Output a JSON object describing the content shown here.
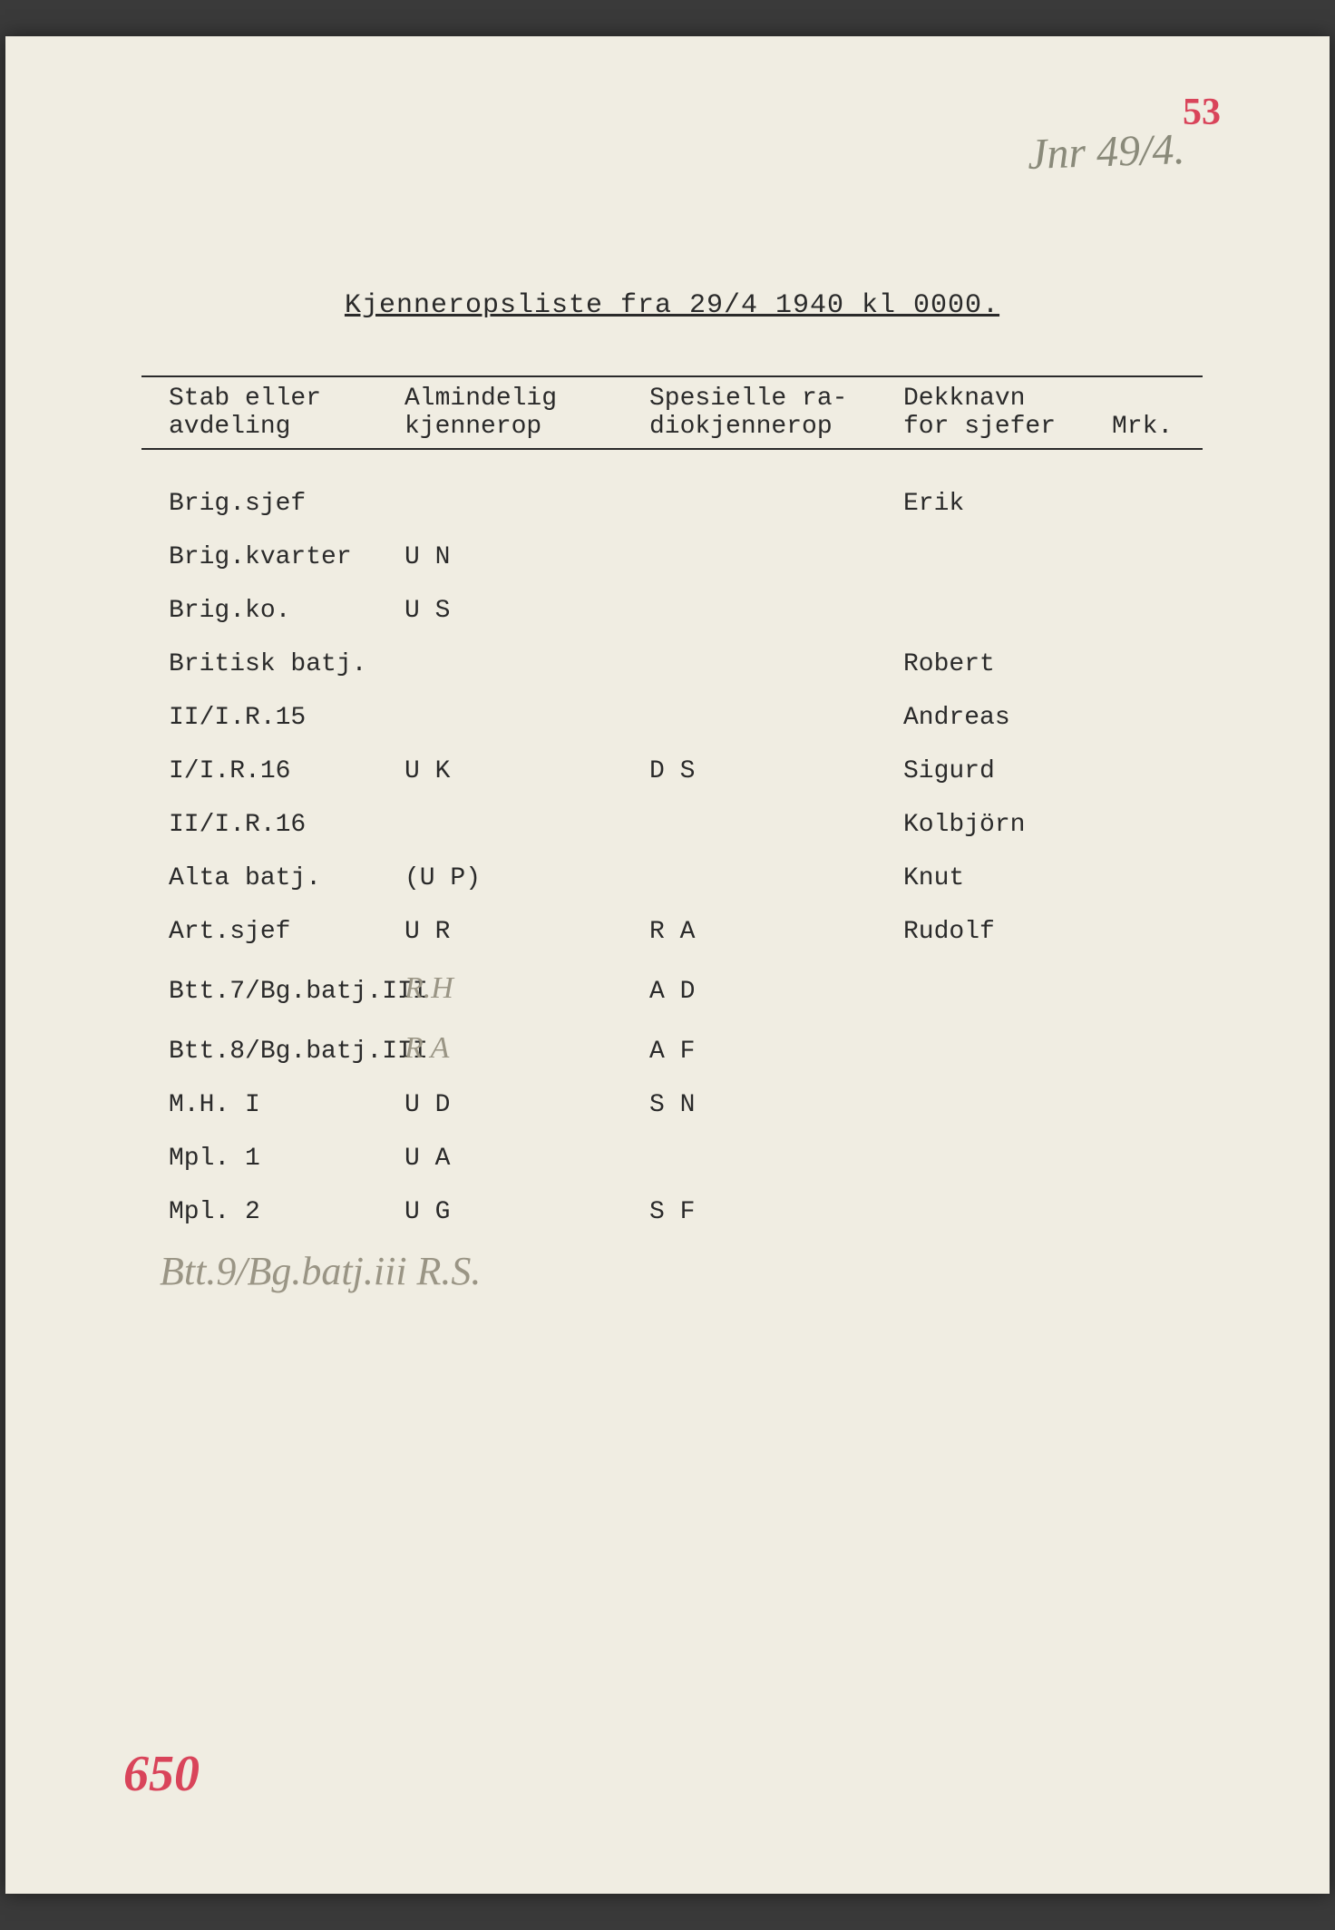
{
  "annotations": {
    "page_number_top": "53",
    "handwritten_top": "Jnr 49/4.",
    "page_number_bottom": "650"
  },
  "title": "Kjenneropsliste fra 29/4 1940 kl 0000.",
  "headers": {
    "col1_line1": "Stab eller",
    "col1_line2": "avdeling",
    "col2_line1": "Almindelig",
    "col2_line2": "kjennerop",
    "col3_line1": "Spesielle ra-",
    "col3_line2": "diokjennerop",
    "col4_line1": "Dekknavn",
    "col4_line2": "for sjefer",
    "col5": "Mrk."
  },
  "rows": [
    {
      "c1": "Brig.sjef",
      "c2": "",
      "c3": "",
      "c4": "Erik"
    },
    {
      "c1": "Brig.kvarter",
      "c2": "U N",
      "c3": "",
      "c4": ""
    },
    {
      "c1": "Brig.ko.",
      "c2": "U S",
      "c3": "",
      "c4": ""
    },
    {
      "c1": "Britisk batj.",
      "c2": "",
      "c3": "",
      "c4": "Robert"
    },
    {
      "c1": "II/I.R.15",
      "c2": "",
      "c3": "",
      "c4": "Andreas"
    },
    {
      "c1": "I/I.R.16",
      "c2": "U K",
      "c3": "D S",
      "c4": "Sigurd"
    },
    {
      "c1": "II/I.R.16",
      "c2": "",
      "c3": "",
      "c4": "Kolbjörn"
    },
    {
      "c1": "Alta batj.",
      "c2": "(U P)",
      "c3": "",
      "c4": "Knut"
    },
    {
      "c1": "Art.sjef",
      "c2": "U R",
      "c3": "R A",
      "c4": "Rudolf"
    },
    {
      "c1": "Btt.7/Bg.batj.III",
      "c2": "R.H",
      "c2_hw": true,
      "c3": "A D",
      "c4": ""
    },
    {
      "c1": "Btt.8/Bg.batj.III",
      "c2": "R A",
      "c2_hw": true,
      "c3": "A F",
      "c4": ""
    },
    {
      "c1": "M.H. I",
      "c2": "U D",
      "c3": "S N",
      "c4": ""
    },
    {
      "c1": "Mpl. 1",
      "c2": "U A",
      "c3": "",
      "c4": ""
    },
    {
      "c1": "Mpl. 2",
      "c2": "U G",
      "c3": "S F",
      "c4": ""
    }
  ],
  "handwritten_row": "Btt.9/Bg.batj.iii  R.S."
}
